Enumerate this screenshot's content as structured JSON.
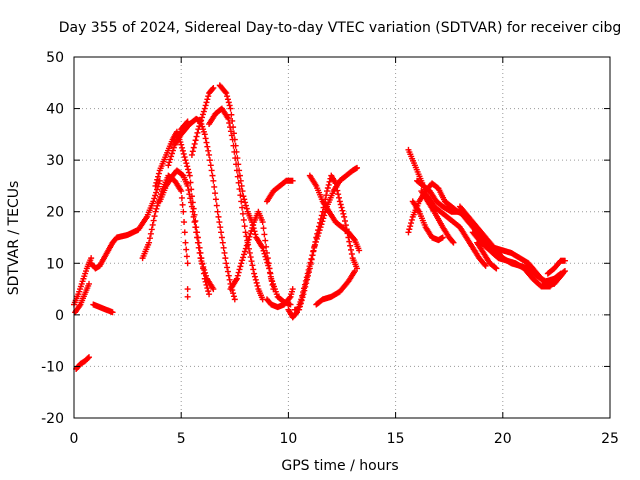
{
  "chart_data": {
    "type": "scatter",
    "title": "Day 355 of 2024, Sidereal Day-to-day VTEC variation (SDTVAR) for receiver cibg",
    "xlabel": "GPS time / hours",
    "ylabel": "SDTVAR / TECUs",
    "xlim": [
      0,
      25
    ],
    "ylim": [
      -20,
      50
    ],
    "xticks": [
      0,
      5,
      10,
      15,
      20,
      25
    ],
    "yticks": [
      -20,
      -10,
      0,
      10,
      20,
      30,
      40,
      50
    ],
    "grid": true,
    "marker": "+",
    "color": "#ff0000",
    "series": [
      {
        "name": "trace-1",
        "points": [
          [
            0.0,
            2
          ],
          [
            0.2,
            4
          ],
          [
            0.4,
            6.5
          ],
          [
            0.6,
            9
          ],
          [
            0.8,
            11
          ]
        ]
      },
      {
        "name": "trace-2",
        "points": [
          [
            0.05,
            0.5
          ],
          [
            0.3,
            2
          ],
          [
            0.5,
            4
          ],
          [
            0.7,
            6
          ]
        ]
      },
      {
        "name": "trace-3",
        "points": [
          [
            0.1,
            -10.5
          ],
          [
            0.3,
            -9.5
          ],
          [
            0.5,
            -9
          ],
          [
            0.7,
            -8.2
          ]
        ]
      },
      {
        "name": "trace-4",
        "points": [
          [
            0.8,
            10
          ],
          [
            1.0,
            9
          ],
          [
            1.2,
            9.5
          ],
          [
            1.4,
            11
          ],
          [
            1.6,
            12.5
          ],
          [
            1.8,
            14
          ],
          [
            2.0,
            15
          ],
          [
            2.5,
            15.5
          ],
          [
            3.0,
            16.5
          ],
          [
            3.4,
            19
          ],
          [
            3.7,
            22
          ],
          [
            4.0,
            26
          ]
        ]
      },
      {
        "name": "trace-5",
        "points": [
          [
            0.9,
            2
          ],
          [
            1.2,
            1.5
          ],
          [
            1.5,
            1
          ],
          [
            1.8,
            0.5
          ]
        ]
      },
      {
        "name": "trace-6",
        "points": [
          [
            3.2,
            11
          ],
          [
            3.5,
            14
          ],
          [
            3.8,
            20
          ],
          [
            4.1,
            24
          ],
          [
            4.4,
            27
          ],
          [
            4.7,
            26
          ],
          [
            5.0,
            24
          ],
          [
            5.1,
            20
          ],
          [
            5.2,
            14
          ],
          [
            5.3,
            10
          ],
          [
            5.3,
            5
          ],
          [
            5.3,
            3.5
          ]
        ]
      },
      {
        "name": "trace-7",
        "points": [
          [
            3.8,
            25
          ],
          [
            4.0,
            28
          ],
          [
            4.3,
            31
          ],
          [
            4.6,
            34
          ],
          [
            4.8,
            35.5
          ],
          [
            5.0,
            33
          ],
          [
            5.2,
            30
          ],
          [
            5.4,
            27
          ],
          [
            5.5,
            23
          ],
          [
            5.7,
            17
          ],
          [
            5.9,
            12
          ],
          [
            6.1,
            7
          ],
          [
            6.3,
            4
          ]
        ]
      },
      {
        "name": "trace-8",
        "points": [
          [
            4.0,
            22
          ],
          [
            4.3,
            25
          ],
          [
            4.6,
            27
          ],
          [
            4.8,
            28
          ],
          [
            5.1,
            27
          ],
          [
            5.3,
            25
          ],
          [
            5.5,
            21
          ],
          [
            5.7,
            16
          ],
          [
            5.9,
            11
          ],
          [
            6.2,
            7
          ],
          [
            6.5,
            5
          ]
        ]
      },
      {
        "name": "trace-9",
        "points": [
          [
            4.4,
            29
          ],
          [
            4.7,
            33
          ],
          [
            5.0,
            35
          ],
          [
            5.4,
            37
          ],
          [
            5.7,
            38
          ],
          [
            5.9,
            37.5
          ],
          [
            6.1,
            35
          ],
          [
            6.3,
            31
          ],
          [
            6.5,
            26
          ],
          [
            6.7,
            20
          ],
          [
            6.9,
            15
          ],
          [
            7.1,
            10
          ],
          [
            7.3,
            6
          ],
          [
            7.5,
            3
          ]
        ]
      },
      {
        "name": "trace-10",
        "points": [
          [
            4.7,
            33
          ],
          [
            5.0,
            36
          ],
          [
            5.3,
            37.5
          ]
        ]
      },
      {
        "name": "trace-11",
        "points": [
          [
            5.5,
            31
          ],
          [
            5.8,
            36
          ],
          [
            6.1,
            40
          ],
          [
            6.3,
            43
          ],
          [
            6.5,
            44
          ]
        ]
      },
      {
        "name": "trace-12",
        "points": [
          [
            6.3,
            37
          ],
          [
            6.6,
            39
          ],
          [
            6.9,
            40
          ],
          [
            7.2,
            38
          ],
          [
            7.4,
            34
          ],
          [
            7.6,
            28
          ],
          [
            7.8,
            22
          ],
          [
            8.0,
            16
          ],
          [
            8.2,
            12
          ],
          [
            8.4,
            8
          ],
          [
            8.6,
            5
          ],
          [
            8.8,
            3
          ]
        ]
      },
      {
        "name": "trace-13",
        "points": [
          [
            6.8,
            44.5
          ],
          [
            7.1,
            43
          ],
          [
            7.3,
            40
          ],
          [
            7.5,
            34
          ],
          [
            7.7,
            28
          ],
          [
            7.9,
            23
          ],
          [
            8.1,
            20
          ],
          [
            8.3,
            18
          ],
          [
            8.5,
            15
          ],
          [
            8.8,
            13
          ],
          [
            9.1,
            9
          ],
          [
            9.3,
            5
          ]
        ]
      },
      {
        "name": "trace-14",
        "points": [
          [
            7.3,
            5
          ],
          [
            7.6,
            7
          ],
          [
            7.8,
            10
          ],
          [
            8.1,
            14
          ],
          [
            8.4,
            18
          ],
          [
            8.6,
            20
          ],
          [
            8.8,
            18
          ],
          [
            9.0,
            12
          ],
          [
            9.2,
            7
          ],
          [
            9.5,
            3.5
          ],
          [
            9.8,
            2.5
          ],
          [
            10.1,
            2
          ]
        ]
      },
      {
        "name": "trace-15",
        "points": [
          [
            9.0,
            22
          ],
          [
            9.3,
            24
          ],
          [
            9.6,
            25
          ],
          [
            9.9,
            26
          ],
          [
            10.2,
            26
          ]
        ]
      },
      {
        "name": "trace-16",
        "points": [
          [
            9.0,
            3
          ],
          [
            9.2,
            2
          ],
          [
            9.5,
            1.5
          ],
          [
            9.8,
            2
          ],
          [
            10.1,
            3.5
          ],
          [
            10.2,
            5
          ]
        ]
      },
      {
        "name": "trace-17",
        "points": [
          [
            10.0,
            1
          ],
          [
            10.2,
            -0.5
          ],
          [
            10.4,
            0.5
          ],
          [
            10.6,
            3
          ],
          [
            10.9,
            8
          ],
          [
            11.2,
            13
          ],
          [
            11.5,
            17
          ],
          [
            11.8,
            21
          ],
          [
            12.1,
            24
          ],
          [
            12.4,
            26
          ],
          [
            12.7,
            27
          ],
          [
            13.0,
            28
          ],
          [
            13.2,
            28.5
          ]
        ]
      },
      {
        "name": "trace-18",
        "points": [
          [
            10.3,
            1
          ],
          [
            10.5,
            1
          ],
          [
            10.7,
            4
          ],
          [
            11.0,
            9
          ],
          [
            11.3,
            15
          ],
          [
            11.6,
            20
          ],
          [
            11.8,
            24
          ],
          [
            12.0,
            27
          ],
          [
            12.2,
            25.5
          ],
          [
            12.4,
            22
          ],
          [
            12.6,
            19
          ],
          [
            12.8,
            15
          ],
          [
            13.0,
            11
          ],
          [
            13.2,
            9
          ]
        ]
      },
      {
        "name": "trace-19",
        "points": [
          [
            11.0,
            27
          ],
          [
            11.3,
            25
          ],
          [
            11.6,
            22
          ],
          [
            11.9,
            20
          ],
          [
            12.2,
            18
          ],
          [
            12.5,
            17
          ],
          [
            12.8,
            16
          ],
          [
            13.1,
            14.5
          ],
          [
            13.3,
            12.5
          ]
        ]
      },
      {
        "name": "trace-20",
        "points": [
          [
            11.3,
            2
          ],
          [
            11.6,
            3
          ],
          [
            12.0,
            3.5
          ],
          [
            12.4,
            4.5
          ],
          [
            12.8,
            6.5
          ],
          [
            13.1,
            8.5
          ]
        ]
      },
      {
        "name": "trace-21",
        "points": [
          [
            15.6,
            16
          ],
          [
            15.8,
            19
          ],
          [
            16.1,
            22
          ],
          [
            16.4,
            24
          ],
          [
            16.7,
            25.5
          ],
          [
            17.0,
            24.5
          ],
          [
            17.3,
            22
          ],
          [
            17.6,
            21
          ],
          [
            17.9,
            20
          ],
          [
            18.2,
            19.5
          ]
        ]
      },
      {
        "name": "trace-22",
        "points": [
          [
            15.6,
            32
          ],
          [
            15.9,
            29
          ],
          [
            16.2,
            26
          ],
          [
            16.5,
            23
          ],
          [
            16.8,
            21
          ],
          [
            17.1,
            20
          ],
          [
            17.4,
            19
          ],
          [
            17.7,
            18
          ],
          [
            18.0,
            17
          ],
          [
            18.3,
            15
          ],
          [
            18.6,
            13
          ],
          [
            18.9,
            11
          ],
          [
            19.2,
            9.5
          ]
        ]
      },
      {
        "name": "trace-23",
        "points": [
          [
            15.8,
            22
          ],
          [
            16.1,
            20
          ],
          [
            16.4,
            17
          ],
          [
            16.7,
            15
          ],
          [
            17.0,
            14.5
          ],
          [
            17.2,
            15
          ]
        ]
      },
      {
        "name": "trace-24",
        "points": [
          [
            16.2,
            24
          ],
          [
            16.5,
            22
          ],
          [
            16.8,
            20
          ],
          [
            17.2,
            17
          ],
          [
            17.5,
            15
          ],
          [
            17.7,
            14
          ]
        ]
      },
      {
        "name": "trace-25",
        "points": [
          [
            16.0,
            26
          ],
          [
            16.3,
            25
          ],
          [
            16.6,
            24
          ],
          [
            16.9,
            22
          ],
          [
            17.2,
            21
          ],
          [
            17.6,
            20
          ],
          [
            18.0,
            20
          ],
          [
            18.4,
            18
          ],
          [
            18.8,
            16
          ],
          [
            19.2,
            14
          ],
          [
            19.6,
            13
          ],
          [
            20.0,
            12.5
          ],
          [
            20.4,
            12
          ],
          [
            20.8,
            11
          ],
          [
            21.2,
            10
          ],
          [
            21.6,
            8
          ],
          [
            22.0,
            6
          ],
          [
            22.4,
            6
          ],
          [
            22.8,
            8
          ]
        ]
      },
      {
        "name": "trace-26",
        "points": [
          [
            18.0,
            21
          ],
          [
            18.4,
            19
          ],
          [
            18.8,
            17
          ],
          [
            19.2,
            15
          ],
          [
            19.6,
            13
          ],
          [
            20.0,
            11
          ],
          [
            20.4,
            10
          ],
          [
            20.8,
            9.5
          ],
          [
            21.2,
            9
          ],
          [
            21.6,
            7.5
          ],
          [
            22.0,
            6.5
          ],
          [
            22.4,
            7
          ],
          [
            22.7,
            8
          ]
        ]
      },
      {
        "name": "trace-27",
        "points": [
          [
            18.6,
            16
          ],
          [
            19.0,
            14
          ],
          [
            19.4,
            12.5
          ],
          [
            19.8,
            11
          ],
          [
            20.2,
            10.5
          ],
          [
            20.6,
            10
          ],
          [
            21.0,
            9
          ],
          [
            21.4,
            7
          ],
          [
            21.8,
            5.5
          ],
          [
            22.2,
            5.5
          ],
          [
            22.6,
            7.5
          ],
          [
            22.9,
            8.5
          ]
        ]
      },
      {
        "name": "trace-28",
        "points": [
          [
            18.8,
            14
          ],
          [
            19.1,
            12
          ],
          [
            19.4,
            10
          ],
          [
            19.7,
            9
          ]
        ]
      },
      {
        "name": "trace-29",
        "points": [
          [
            22.1,
            8
          ],
          [
            22.4,
            9
          ],
          [
            22.7,
            10.5
          ],
          [
            22.9,
            10.5
          ]
        ]
      }
    ]
  }
}
